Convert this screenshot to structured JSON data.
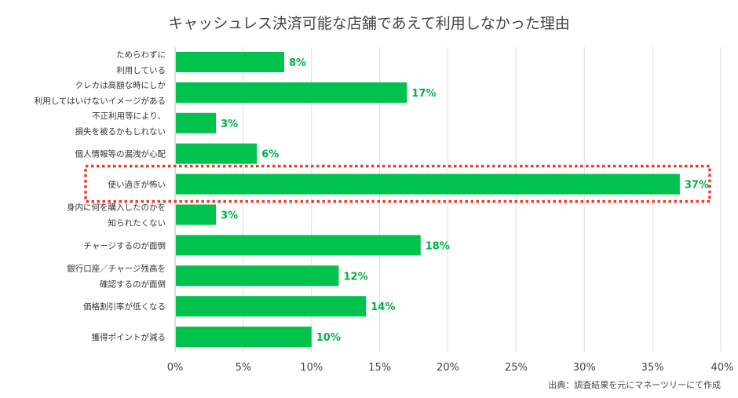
{
  "chart_data": {
    "type": "bar",
    "orientation": "horizontal",
    "title": "キャッシュレス決済可能な店舗であえて利用しなかった理由",
    "categories": [
      [
        "ためらわずに",
        "利用している"
      ],
      [
        "クレカは高額な時にしか",
        "利用してはいけないイメージがある"
      ],
      [
        "不正利用等により、",
        "損失を被るかもしれない"
      ],
      [
        "個人情報等の漏洩が心配"
      ],
      [
        "使い過ぎが怖い"
      ],
      [
        "身内に何を購入したのかを",
        "知られたくない"
      ],
      [
        "チャージするのが面倒"
      ],
      [
        "銀行口座／チャージ残高を",
        "確認するのが面倒"
      ],
      [
        "価格割引率が低くなる"
      ],
      [
        "獲得ポイントが減る"
      ]
    ],
    "values": [
      8,
      17,
      3,
      6,
      37,
      3,
      18,
      12,
      14,
      10
    ],
    "value_labels": [
      "8%",
      "17%",
      "3%",
      "6%",
      "37%",
      "3%",
      "18%",
      "12%",
      "14%",
      "10%"
    ],
    "highlighted_index": 4,
    "xlim": [
      0,
      40
    ],
    "xticks": [
      0,
      5,
      10,
      15,
      20,
      25,
      30,
      35,
      40
    ],
    "xtick_labels": [
      "0%",
      "5%",
      "10%",
      "15%",
      "20%",
      "25%",
      "30%",
      "35%",
      "40%"
    ],
    "grid": true,
    "bar_color": "#00c34d",
    "label_color": "#00b043",
    "highlight_color": "#ee3a2e",
    "source": "出典：調査結果を元にマネーツリーにて作成"
  }
}
